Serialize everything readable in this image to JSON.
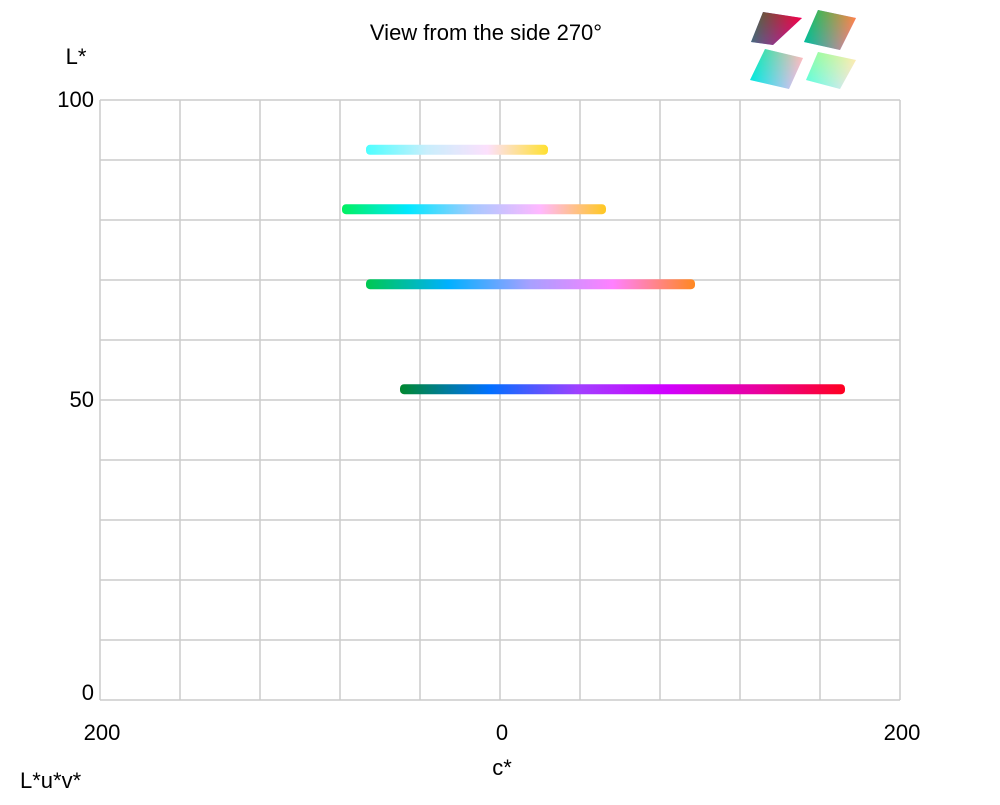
{
  "chart_data": {
    "type": "line",
    "title": "View from the side 270°",
    "xlabel": "c*",
    "ylabel": "L*",
    "corner_label": "L*u*v*",
    "xlim": [
      -200,
      200
    ],
    "ylim": [
      0,
      100
    ],
    "x_tick_labels": [
      {
        "value": -200,
        "label": "200"
      },
      {
        "value": 0,
        "label": "0"
      },
      {
        "value": 200,
        "label": "200"
      }
    ],
    "y_tick_labels": [
      {
        "value": 100,
        "label": "100"
      },
      {
        "value": 50,
        "label": "50"
      },
      {
        "value": 0,
        "label": "0"
      }
    ],
    "grid": true,
    "grid_x_step": 40,
    "grid_y_step": 10,
    "grid_color": "#cccccc",
    "series": [
      {
        "L": 91.7,
        "c_min": -67,
        "c_max": 24,
        "colors": [
          "#4dffff",
          "#c8eefc",
          "#fce0fc",
          "#ffe030"
        ]
      },
      {
        "L": 81.8,
        "c_min": -79,
        "c_max": 53,
        "colors": [
          "#00f060",
          "#00e8ff",
          "#a8c8ff",
          "#ffb8ff",
          "#ffc820"
        ]
      },
      {
        "L": 69.3,
        "c_min": -67,
        "c_max": 97.5,
        "colors": [
          "#00c850",
          "#00b0ff",
          "#a8a0ff",
          "#ff80ff",
          "#ff8820"
        ]
      },
      {
        "L": 51.8,
        "c_min": -50,
        "c_max": 172.5,
        "colors": [
          "#008830",
          "#0070ff",
          "#a040ff",
          "#d000ff",
          "#e800a0",
          "#ff0020"
        ]
      }
    ],
    "thumbnails": [
      {
        "name": "view-thumb-1",
        "colors": [
          "#407020",
          "#5060ff",
          "#ff0020",
          "#d000ff"
        ]
      },
      {
        "name": "view-thumb-2",
        "colors": [
          "#00c850",
          "#00b0ff",
          "#ff8820",
          "#ff70ff"
        ]
      },
      {
        "name": "view-thumb-3",
        "colors": [
          "#00f060",
          "#00e8ff",
          "#ffc060",
          "#ffb8ff"
        ]
      },
      {
        "name": "view-thumb-4",
        "colors": [
          "#c0ff40",
          "#4dffff",
          "#ffff40",
          "#fce0fc"
        ]
      }
    ]
  }
}
